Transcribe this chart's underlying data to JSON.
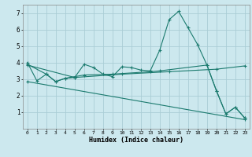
{
  "xlabel": "Humidex (Indice chaleur)",
  "bg_color": "#cce8ee",
  "grid_color": "#aacdd5",
  "line_color": "#1a7a6e",
  "xlim": [
    -0.5,
    23.5
  ],
  "ylim": [
    0,
    7.5
  ],
  "series1": [
    [
      0,
      4.0
    ],
    [
      1,
      2.9
    ],
    [
      2,
      3.3
    ],
    [
      3,
      2.85
    ],
    [
      4,
      3.05
    ],
    [
      5,
      3.1
    ],
    [
      6,
      3.9
    ],
    [
      7,
      3.7
    ],
    [
      8,
      3.3
    ],
    [
      9,
      3.15
    ],
    [
      10,
      3.75
    ],
    [
      11,
      3.7
    ],
    [
      12,
      3.55
    ],
    [
      13,
      3.5
    ],
    [
      14,
      4.75
    ],
    [
      15,
      6.6
    ],
    [
      16,
      7.1
    ],
    [
      17,
      6.1
    ],
    [
      18,
      5.1
    ],
    [
      19,
      3.85
    ],
    [
      20,
      2.3
    ],
    [
      21,
      0.9
    ],
    [
      22,
      1.3
    ],
    [
      23,
      0.65
    ]
  ],
  "series2": [
    [
      0,
      3.9
    ],
    [
      2,
      3.3
    ],
    [
      3,
      2.85
    ],
    [
      4,
      3.05
    ],
    [
      6,
      3.25
    ],
    [
      9,
      3.3
    ],
    [
      13,
      3.45
    ],
    [
      14,
      3.5
    ],
    [
      19,
      3.85
    ],
    [
      20,
      2.3
    ],
    [
      21,
      0.9
    ],
    [
      22,
      1.3
    ],
    [
      23,
      0.65
    ]
  ],
  "series3": [
    [
      0,
      3.85
    ],
    [
      5,
      3.1
    ],
    [
      10,
      3.3
    ],
    [
      15,
      3.45
    ],
    [
      20,
      3.6
    ],
    [
      23,
      3.8
    ]
  ],
  "series4": [
    [
      0,
      2.85
    ],
    [
      23,
      0.55
    ]
  ]
}
